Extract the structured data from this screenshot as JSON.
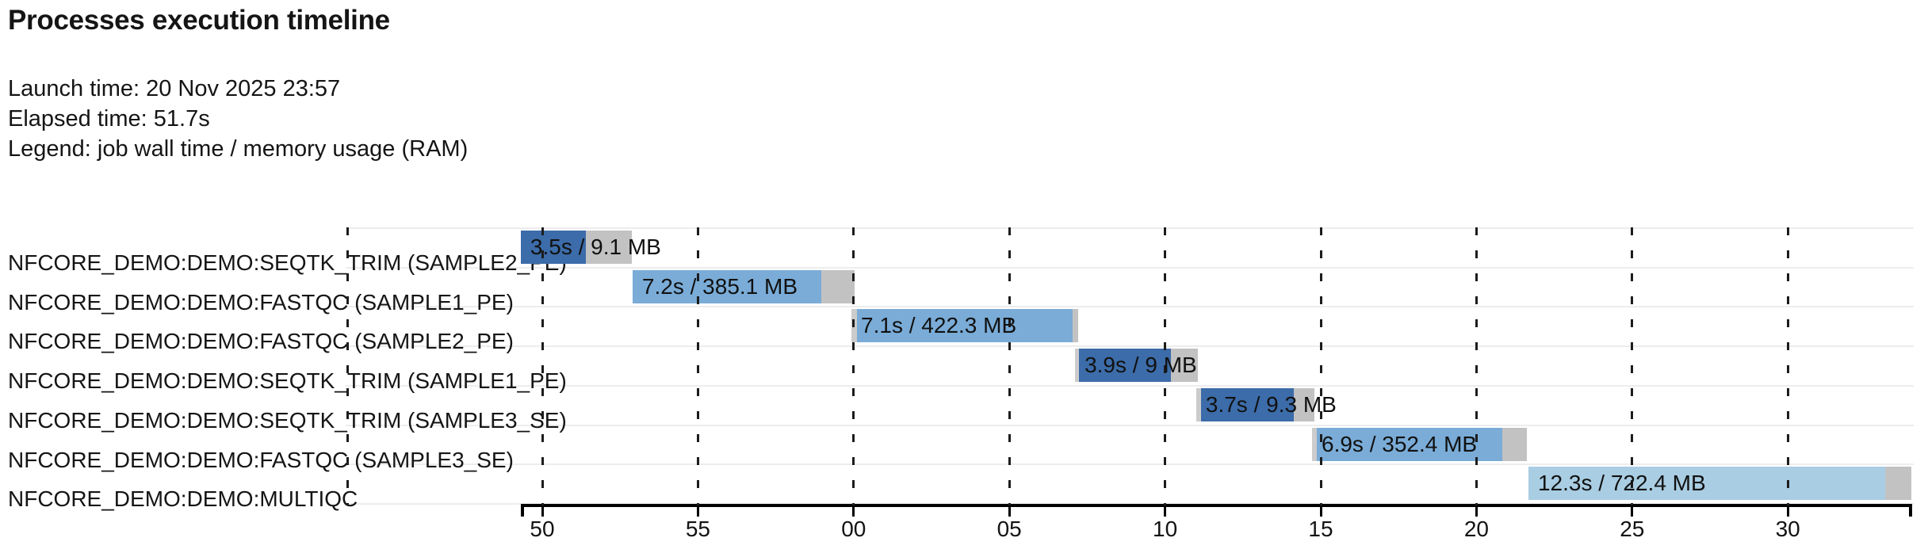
{
  "header": {
    "title": "Processes execution timeline"
  },
  "meta": {
    "launch": "Launch time: 20 Nov 2025 23:57",
    "elapsed": "Elapsed time: 51.7s",
    "legend": "Legend: job wall time / memory usage (RAM)"
  },
  "colors": {
    "process_seqtk_trim": "#3c6ca9",
    "process_fastqc": "#7aacd7",
    "process_multiqc": "#a9cde3",
    "tail_gray": "#c2c2c2",
    "lead_gray": "#cccccc",
    "grid_dash": "#1c1c1c",
    "row_separator": "#ededed",
    "axis": "#000000",
    "text": "#151515"
  },
  "chart_data": {
    "type": "timeline",
    "title": "Processes execution timeline",
    "launch_time": "20 Nov 2025 23:57",
    "elapsed_time_s": 51.7,
    "legend": "job wall time / memory usage (RAM)",
    "x_axis": {
      "unit": "wall-clock seconds (labels wrap past the minute)",
      "domain": [
        49.3,
        94.0
      ],
      "grid": "dashed",
      "edge_gridline_t": 43.74,
      "ticks": [
        {
          "t": 50,
          "label": "50"
        },
        {
          "t": 55,
          "label": "55"
        },
        {
          "t": 60,
          "label": "00"
        },
        {
          "t": 65,
          "label": "05"
        },
        {
          "t": 70,
          "label": "10"
        },
        {
          "t": 75,
          "label": "15"
        },
        {
          "t": 80,
          "label": "20"
        },
        {
          "t": 85,
          "label": "25"
        },
        {
          "t": 90,
          "label": "30"
        }
      ]
    },
    "tasks": [
      {
        "process": "NFCORE_DEMO:DEMO:SEQTK_TRIM (SAMPLE2_PE)",
        "label": "3.5s / 9.1 MB",
        "wall_time_s": 3.5,
        "memory_mb": 9.1,
        "color_key": "process_seqtk_trim",
        "start_t": 49.31,
        "lead_end_t": 49.31,
        "run_end_t": 51.4,
        "end_t": 52.88
      },
      {
        "process": "NFCORE_DEMO:DEMO:FASTQC (SAMPLE1_PE)",
        "label": "7.2s / 385.1 MB",
        "wall_time_s": 7.2,
        "memory_mb": 385.1,
        "color_key": "process_fastqc",
        "start_t": 52.9,
        "lead_end_t": 52.9,
        "run_end_t": 58.96,
        "end_t": 60.03
      },
      {
        "process": "NFCORE_DEMO:DEMO:FASTQC (SAMPLE2_PE)",
        "label": "7.1s / 422.3 MB",
        "wall_time_s": 7.1,
        "memory_mb": 422.3,
        "color_key": "process_fastqc",
        "start_t": 59.93,
        "lead_end_t": 60.11,
        "run_end_t": 67.03,
        "end_t": 67.21
      },
      {
        "process": "NFCORE_DEMO:DEMO:SEQTK_TRIM (SAMPLE1_PE)",
        "label": "3.9s / 9 MB",
        "wall_time_s": 3.9,
        "memory_mb": 9,
        "color_key": "process_seqtk_trim",
        "start_t": 67.11,
        "lead_end_t": 67.23,
        "run_end_t": 70.19,
        "end_t": 71.05
      },
      {
        "process": "NFCORE_DEMO:DEMO:SEQTK_TRIM (SAMPLE3_SE)",
        "label": "3.7s / 9.3 MB",
        "wall_time_s": 3.7,
        "memory_mb": 9.3,
        "color_key": "process_seqtk_trim",
        "start_t": 71.0,
        "lead_end_t": 71.16,
        "run_end_t": 74.13,
        "end_t": 74.8
      },
      {
        "process": "NFCORE_DEMO:DEMO:FASTQC (SAMPLE3_SE)",
        "label": "6.9s / 352.4 MB",
        "wall_time_s": 6.9,
        "memory_mb": 352.4,
        "color_key": "process_fastqc",
        "start_t": 74.72,
        "lead_end_t": 74.87,
        "run_end_t": 80.83,
        "end_t": 81.62
      },
      {
        "process": "NFCORE_DEMO:DEMO:MULTIQC",
        "label": "12.3s / 722.4 MB",
        "wall_time_s": 12.3,
        "memory_mb": 722.4,
        "color_key": "process_multiqc",
        "start_t": 81.67,
        "lead_end_t": 81.67,
        "run_end_t": 93.13,
        "end_t": 93.97
      }
    ]
  }
}
